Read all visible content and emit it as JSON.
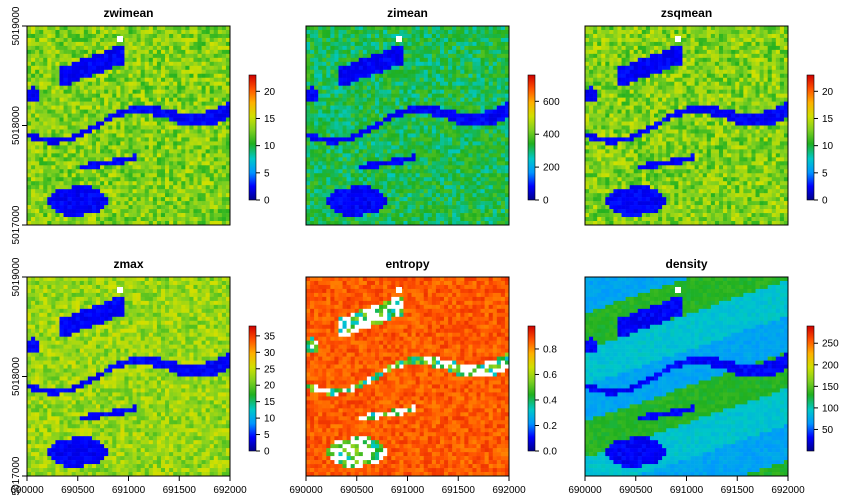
{
  "figure": {
    "panels": [
      {
        "title": "zwimean"
      },
      {
        "title": "zimean"
      },
      {
        "title": "zsqmean"
      },
      {
        "title": "zmax"
      },
      {
        "title": "entropy"
      },
      {
        "title": "density"
      }
    ]
  },
  "chart_data": [
    {
      "type": "heatmap",
      "title": "zwimean",
      "xlim": [
        690000,
        692000
      ],
      "ylim": [
        5017000,
        5019000
      ],
      "x_ticks": [],
      "y_ticks": [
        "5017000",
        "5018000",
        "5019000"
      ],
      "colorbar": {
        "ticks": [
          0,
          5,
          10,
          15,
          20
        ],
        "labels": [
          "0",
          "5",
          "10",
          "15",
          "20"
        ],
        "range": [
          0,
          23
        ]
      },
      "palette": [
        "#00008B",
        "#0000FF",
        "#0096FF",
        "#00C8C8",
        "#20B020",
        "#80D020",
        "#D0E000",
        "#FFB000",
        "#FF5000",
        "#D00000"
      ]
    },
    {
      "type": "heatmap",
      "title": "zimean",
      "xlim": [
        690000,
        692000
      ],
      "ylim": [
        5017000,
        5019000
      ],
      "x_ticks": [],
      "y_ticks": [],
      "colorbar": {
        "ticks": [
          0,
          200,
          400,
          600
        ],
        "labels": [
          "0",
          "200",
          "400",
          "600"
        ],
        "range": [
          0,
          760
        ]
      },
      "palette": [
        "#00008B",
        "#0000FF",
        "#0096FF",
        "#00C8C8",
        "#20B020",
        "#80D020",
        "#D0E000",
        "#FFB000",
        "#FF5000",
        "#D00000"
      ]
    },
    {
      "type": "heatmap",
      "title": "zsqmean",
      "xlim": [
        690000,
        692000
      ],
      "ylim": [
        5017000,
        5019000
      ],
      "x_ticks": [],
      "y_ticks": [],
      "colorbar": {
        "ticks": [
          0,
          5,
          10,
          15,
          20
        ],
        "labels": [
          "0",
          "5",
          "10",
          "15",
          "20"
        ],
        "range": [
          0,
          23
        ]
      },
      "palette": [
        "#00008B",
        "#0000FF",
        "#0096FF",
        "#00C8C8",
        "#20B020",
        "#80D020",
        "#D0E000",
        "#FFB000",
        "#FF5000",
        "#D00000"
      ]
    },
    {
      "type": "heatmap",
      "title": "zmax",
      "xlim": [
        690000,
        692000
      ],
      "ylim": [
        5017000,
        5019000
      ],
      "x_ticks": [
        "690000",
        "690500",
        "691000",
        "691500",
        "692000"
      ],
      "y_ticks": [
        "5017000",
        "5018000",
        "5019000"
      ],
      "colorbar": {
        "ticks": [
          0,
          5,
          10,
          15,
          20,
          25,
          30,
          35
        ],
        "labels": [
          "0",
          "5",
          "10",
          "15",
          "20",
          "25",
          "30",
          "35"
        ],
        "range": [
          0,
          38
        ]
      },
      "palette": [
        "#00008B",
        "#0000FF",
        "#0096FF",
        "#00C8C8",
        "#20B020",
        "#80D020",
        "#D0E000",
        "#FFB000",
        "#FF5000",
        "#D00000"
      ]
    },
    {
      "type": "heatmap",
      "title": "entropy",
      "xlim": [
        690000,
        692000
      ],
      "ylim": [
        5017000,
        5019000
      ],
      "x_ticks": [
        "690000",
        "690500",
        "691000",
        "691500",
        "692000"
      ],
      "y_ticks": [],
      "colorbar": {
        "ticks": [
          0.0,
          0.2,
          0.4,
          0.6,
          0.8
        ],
        "labels": [
          "0.0",
          "0.2",
          "0.4",
          "0.6",
          "0.8"
        ],
        "range": [
          0,
          0.98
        ]
      },
      "palette": [
        "#00008B",
        "#0000FF",
        "#0096FF",
        "#00C8C8",
        "#20B020",
        "#80D020",
        "#D0E000",
        "#FFB000",
        "#FF5000",
        "#D00000"
      ]
    },
    {
      "type": "heatmap",
      "title": "density",
      "xlim": [
        690000,
        692000
      ],
      "ylim": [
        5017000,
        5019000
      ],
      "x_ticks": [
        "690000",
        "690500",
        "691000",
        "691500",
        "692000"
      ],
      "y_ticks": [],
      "colorbar": {
        "ticks": [
          50,
          100,
          150,
          200,
          250
        ],
        "labels": [
          "50",
          "100",
          "150",
          "200",
          "250"
        ],
        "range": [
          0,
          290
        ]
      },
      "palette": [
        "#00008B",
        "#0000FF",
        "#0096FF",
        "#00C8C8",
        "#20B020",
        "#80D020",
        "#D0E000",
        "#FFB000",
        "#FF5000",
        "#D00000"
      ]
    }
  ]
}
